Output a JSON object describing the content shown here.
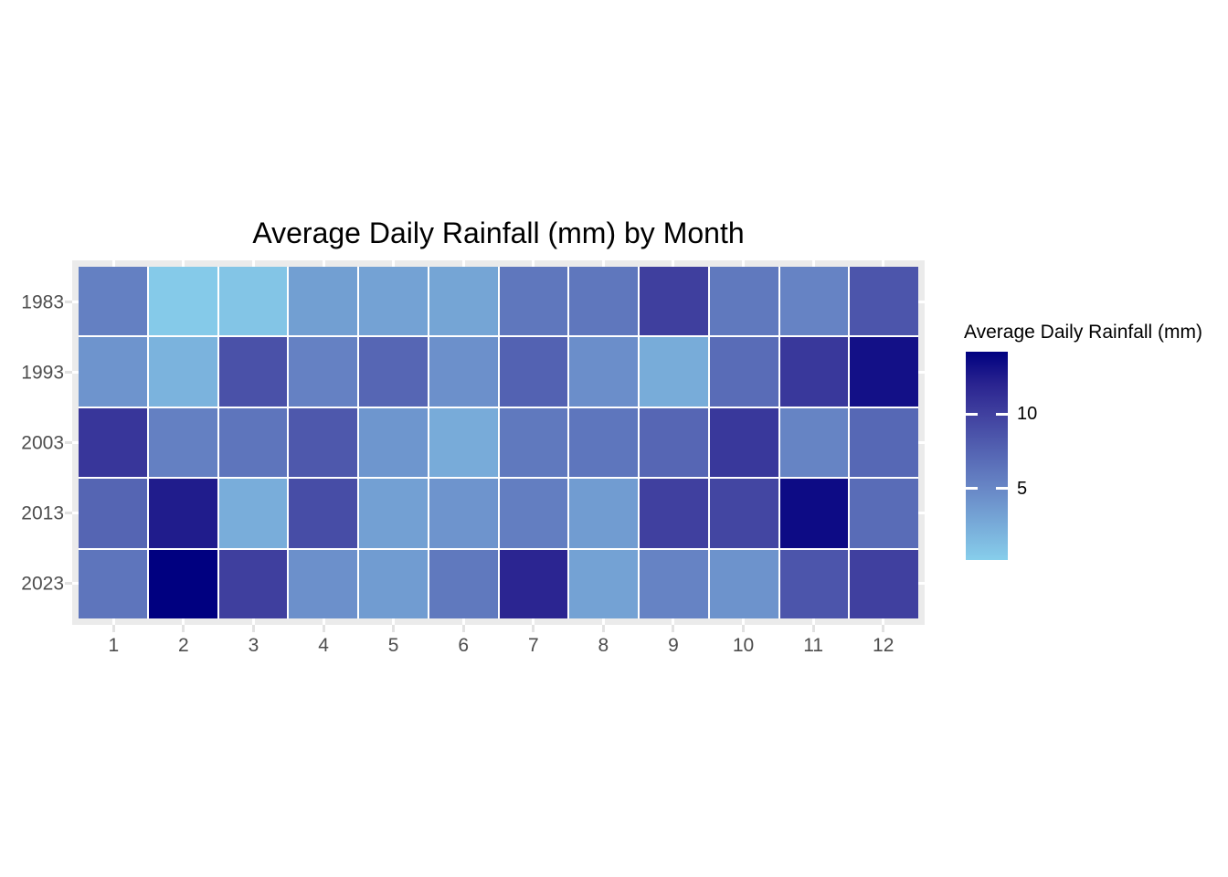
{
  "figure": {
    "title": "Average Daily Rainfall (mm) by Month"
  },
  "chart_data": {
    "type": "heatmap",
    "title": "Average Daily Rainfall (mm) by Month",
    "xlabel": "",
    "ylabel": "",
    "x_categories": [
      "1",
      "2",
      "3",
      "4",
      "5",
      "6",
      "7",
      "8",
      "9",
      "10",
      "11",
      "12"
    ],
    "y_categories": [
      "1983",
      "1993",
      "2003",
      "2013",
      "2023"
    ],
    "values_by_row": [
      [
        5.5,
        0.5,
        0.8,
        3.4,
        3.2,
        3.0,
        6.1,
        6.1,
        10.1,
        6.0,
        5.3,
        8.5
      ],
      [
        4.1,
        2.0,
        8.8,
        5.4,
        7.3,
        4.4,
        7.6,
        4.5,
        2.5,
        6.9,
        10.6,
        13.2
      ],
      [
        10.7,
        5.5,
        6.3,
        8.3,
        4.0,
        2.6,
        6.0,
        6.2,
        7.3,
        10.6,
        5.2,
        7.2
      ],
      [
        7.4,
        12.5,
        2.4,
        9.1,
        3.3,
        4.1,
        5.6,
        3.6,
        10.0,
        9.6,
        13.5,
        6.9
      ],
      [
        6.3,
        14.2,
        10.1,
        4.4,
        3.6,
        6.0,
        11.9,
        3.2,
        5.3,
        4.2,
        8.5,
        10.0
      ]
    ],
    "value_domain": [
      0.2,
      14.2
    ],
    "legend": {
      "title": "Average Daily Rainfall (mm)",
      "ticks": [
        10,
        5
      ],
      "position": "right"
    },
    "color_scale": {
      "low": "#87CEEB",
      "high": "#000080",
      "stops": [
        {
          "value": 0.2,
          "color": "#87CEEB"
        },
        {
          "value": 5.0,
          "color": "#6887C6"
        },
        {
          "value": 10.0,
          "color": "#40409F"
        },
        {
          "value": 12.0,
          "color": "#2A2490"
        },
        {
          "value": 14.2,
          "color": "#000080"
        }
      ]
    },
    "style": {
      "panel_background": "#EBEBEB",
      "tile_gap_color": "#FFFFFF",
      "axis_text_color": "#4D4D4D",
      "gridline_color": "#FFFFFF",
      "axis_tick_color": "#E2E2E2"
    }
  }
}
